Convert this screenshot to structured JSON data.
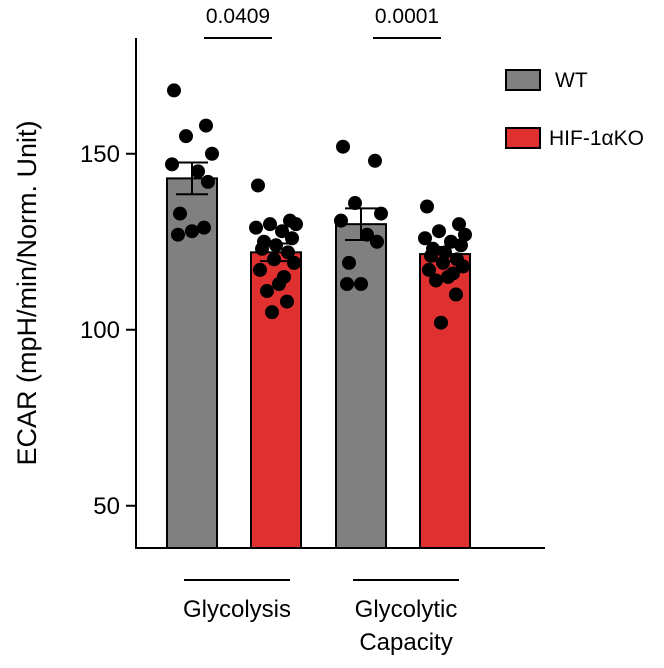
{
  "chart_data": {
    "type": "bar",
    "title": "",
    "xlabel": "",
    "ylabel": "ECAR (mpH/min/Norm. Unit)",
    "ylim": [
      38,
      175
    ],
    "yticks": [
      50,
      100,
      150
    ],
    "categories": [
      "Glycolysis",
      "Glycolytic Capacity"
    ],
    "series": [
      {
        "name": "WT",
        "color": "#808080",
        "values": [
          143,
          130
        ],
        "sem": [
          4.5,
          4.5
        ],
        "points": [
          [
            168,
            158,
            155,
            150,
            147,
            145,
            142,
            133,
            128,
            127,
            129
          ],
          [
            152,
            148,
            136,
            133,
            131,
            127,
            125,
            119,
            113,
            113
          ]
        ]
      },
      {
        "name": "HIF-1αKO",
        "color": "#e03030",
        "values": [
          122,
          121.5
        ],
        "sem": [
          2.5,
          2
        ],
        "points": [
          [
            141,
            131,
            130,
            130,
            129,
            128,
            126,
            125,
            124,
            123,
            122,
            120,
            119,
            117,
            115,
            113,
            111,
            108,
            105
          ],
          [
            135,
            130,
            128,
            127,
            126,
            125,
            124,
            123,
            122,
            121,
            120,
            119,
            118,
            117,
            116,
            115,
            114,
            110,
            102
          ]
        ]
      }
    ],
    "annotations": [
      {
        "between": [
          "Glycolysis WT",
          "Glycolysis HIF-1αKO"
        ],
        "text": "0.0409"
      },
      {
        "between": [
          "Glycolytic Capacity WT",
          "Glycolytic Capacity HIF-1αKO"
        ],
        "text": "0.0001"
      }
    ],
    "legend_position": "top-right",
    "grid": false
  }
}
